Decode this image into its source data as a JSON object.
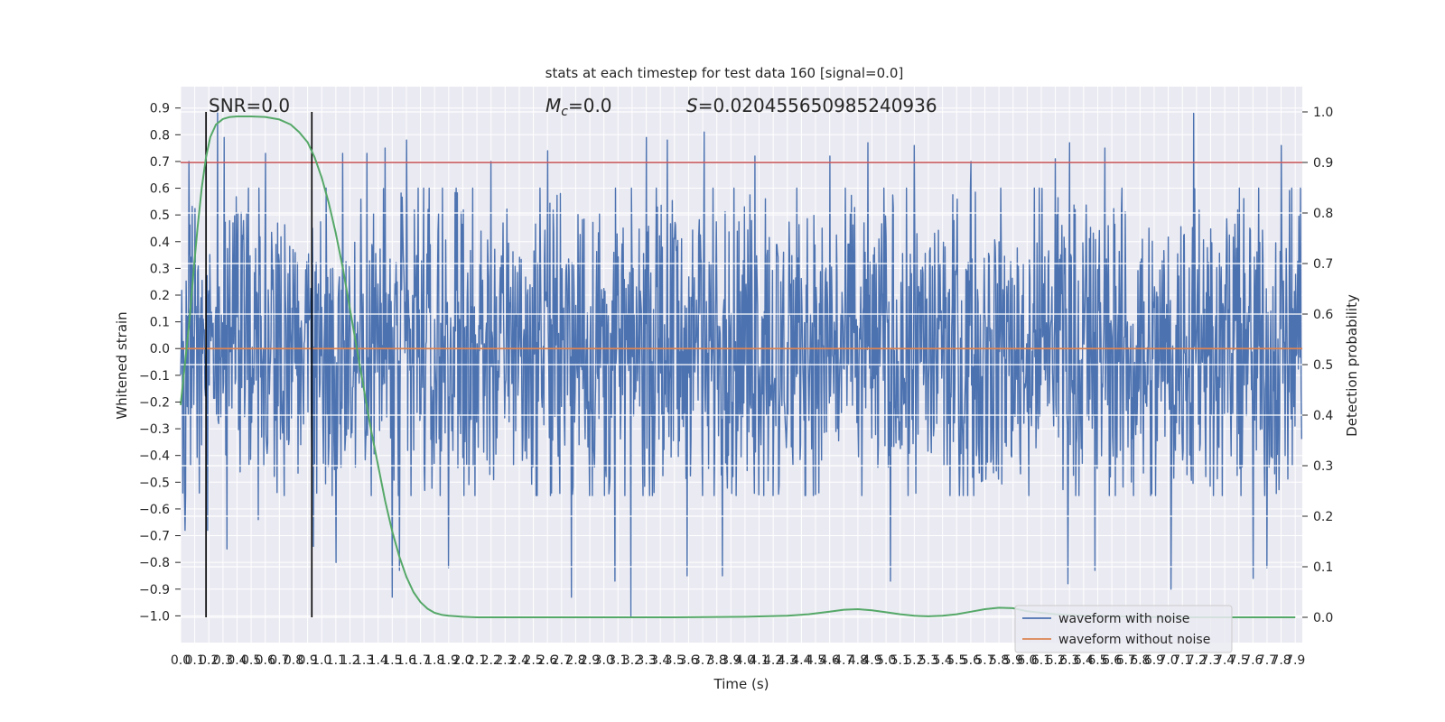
{
  "chart_data": {
    "type": "line",
    "title": "stats at each timestep for test data 160 [signal=0.0]",
    "xlabel": "Time (s)",
    "ylabel": "Whitened strain",
    "y2label": "Detection probability",
    "xlim": [
      0.0,
      7.95
    ],
    "ylim": [
      -1.1,
      0.98
    ],
    "y2lim": [
      -0.05,
      1.05
    ],
    "grid": true,
    "x_ticks": [
      "0.0",
      "0.1",
      "0.2",
      "0.3",
      "0.4",
      "0.5",
      "0.6",
      "0.7",
      "0.8",
      "0.9",
      "1.0",
      "1.1",
      "1.2",
      "1.3",
      "1.4",
      "1.5",
      "1.6",
      "1.7",
      "1.8",
      "1.9",
      "2.0",
      "2.1",
      "2.2",
      "2.3",
      "2.4",
      "2.5",
      "2.6",
      "2.7",
      "2.8",
      "2.9",
      "3.0",
      "3.1",
      "3.2",
      "3.3",
      "3.4",
      "3.5",
      "3.6",
      "3.7",
      "3.8",
      "3.9",
      "4.0",
      "4.1",
      "4.2",
      "4.3",
      "4.4",
      "4.5",
      "4.6",
      "4.7",
      "4.8",
      "4.9",
      "5.0",
      "5.1",
      "5.2",
      "5.3",
      "5.4",
      "5.5",
      "5.6",
      "5.7",
      "5.8",
      "5.9",
      "6.0",
      "6.1",
      "6.2",
      "6.3",
      "6.4",
      "6.5",
      "6.6",
      "6.7",
      "6.8",
      "6.9",
      "7.0",
      "7.1",
      "7.2",
      "7.3",
      "7.4",
      "7.5",
      "7.6",
      "7.7",
      "7.8",
      "7.9"
    ],
    "y_ticks": [
      "0.9",
      "0.8",
      "0.7",
      "0.6",
      "0.5",
      "0.4",
      "0.3",
      "0.2",
      "0.1",
      "0.0",
      "−0.1",
      "−0.2",
      "−0.3",
      "−0.4",
      "−0.5",
      "−0.6",
      "−0.7",
      "−0.8",
      "−0.9",
      "−1.0"
    ],
    "y2_ticks": [
      "1.0",
      "0.9",
      "0.8",
      "0.7",
      "0.6",
      "0.5",
      "0.4",
      "0.3",
      "0.2",
      "0.1",
      "0.0"
    ],
    "annotations": {
      "snr": "SNR=0.0",
      "mc_symbol": "M",
      "mc_sub": "c",
      "mc_value": "=0.0",
      "s_symbol": "S",
      "s_value": "=0.020455650985240936"
    },
    "threshold": {
      "y2": 0.9,
      "color": "#c44e52"
    },
    "vertical_markers": [
      0.18,
      0.93
    ],
    "series": [
      {
        "name": "waveform with noise",
        "color": "#4c72b0",
        "sample_rate": 256,
        "seed": 160,
        "typical_range": [
          -0.45,
          0.5
        ],
        "spikes": [
          {
            "x": 0.26,
            "y": 0.9
          },
          {
            "x": 0.31,
            "y": 0.79
          },
          {
            "x": 0.33,
            "y": -0.75
          },
          {
            "x": 0.06,
            "y": 0.7
          },
          {
            "x": 0.03,
            "y": -0.68
          },
          {
            "x": 0.19,
            "y": -0.68
          },
          {
            "x": 0.6,
            "y": 0.73
          },
          {
            "x": 0.55,
            "y": -0.64
          },
          {
            "x": 0.94,
            "y": -0.74
          },
          {
            "x": 1.1,
            "y": -0.8
          },
          {
            "x": 1.15,
            "y": 0.73
          },
          {
            "x": 1.32,
            "y": 0.73
          },
          {
            "x": 1.45,
            "y": 0.75
          },
          {
            "x": 1.5,
            "y": -0.93
          },
          {
            "x": 1.6,
            "y": 0.78
          },
          {
            "x": 1.55,
            "y": -0.83
          },
          {
            "x": 1.9,
            "y": -0.82
          },
          {
            "x": 2.2,
            "y": 0.7
          },
          {
            "x": 2.6,
            "y": 0.74
          },
          {
            "x": 2.77,
            "y": -0.93
          },
          {
            "x": 3.08,
            "y": -0.87
          },
          {
            "x": 3.19,
            "y": -1.0
          },
          {
            "x": 3.3,
            "y": 0.79
          },
          {
            "x": 3.45,
            "y": 0.78
          },
          {
            "x": 3.71,
            "y": 0.81
          },
          {
            "x": 3.59,
            "y": -0.85
          },
          {
            "x": 3.84,
            "y": -0.85
          },
          {
            "x": 4.07,
            "y": 0.72
          },
          {
            "x": 4.6,
            "y": 0.72
          },
          {
            "x": 4.87,
            "y": 0.77
          },
          {
            "x": 5.03,
            "y": -0.87
          },
          {
            "x": 5.2,
            "y": 0.76
          },
          {
            "x": 5.6,
            "y": 0.7
          },
          {
            "x": 6.2,
            "y": 0.71
          },
          {
            "x": 6.3,
            "y": 0.77
          },
          {
            "x": 6.55,
            "y": 0.75
          },
          {
            "x": 6.29,
            "y": -0.88
          },
          {
            "x": 6.48,
            "y": -0.83
          },
          {
            "x": 7.02,
            "y": -0.9
          },
          {
            "x": 7.18,
            "y": 0.88
          },
          {
            "x": 7.6,
            "y": -0.86
          },
          {
            "x": 7.8,
            "y": 0.76
          },
          {
            "x": 7.7,
            "y": -0.82
          }
        ]
      },
      {
        "name": "waveform without noise",
        "color": "#dd8452",
        "x": [
          0.0,
          7.95
        ],
        "y": [
          0.0,
          0.0
        ]
      },
      {
        "name": "Detection probability",
        "axis": "right",
        "color": "#55a868",
        "x": [
          0.0,
          0.03,
          0.06,
          0.09,
          0.12,
          0.15,
          0.18,
          0.21,
          0.25,
          0.3,
          0.35,
          0.4,
          0.5,
          0.6,
          0.7,
          0.78,
          0.84,
          0.9,
          0.95,
          1.0,
          1.05,
          1.1,
          1.15,
          1.2,
          1.25,
          1.3,
          1.35,
          1.4,
          1.45,
          1.5,
          1.55,
          1.6,
          1.65,
          1.7,
          1.75,
          1.8,
          1.85,
          1.9,
          2.0,
          2.1,
          2.3,
          2.6,
          3.0,
          3.5,
          4.0,
          4.3,
          4.45,
          4.6,
          4.7,
          4.8,
          4.9,
          5.0,
          5.1,
          5.2,
          5.3,
          5.4,
          5.5,
          5.6,
          5.7,
          5.8,
          5.9,
          6.0,
          6.2,
          6.4,
          6.6,
          6.8,
          7.0,
          7.2,
          7.5,
          7.9
        ],
        "y": [
          0.42,
          0.5,
          0.58,
          0.68,
          0.77,
          0.85,
          0.91,
          0.95,
          0.975,
          0.986,
          0.99,
          0.991,
          0.991,
          0.99,
          0.985,
          0.975,
          0.96,
          0.94,
          0.91,
          0.87,
          0.82,
          0.76,
          0.69,
          0.61,
          0.53,
          0.45,
          0.37,
          0.3,
          0.23,
          0.17,
          0.12,
          0.08,
          0.05,
          0.03,
          0.017,
          0.009,
          0.005,
          0.003,
          0.001,
          0.0,
          0.0,
          0.0,
          0.0,
          0.0,
          0.001,
          0.003,
          0.006,
          0.011,
          0.015,
          0.016,
          0.014,
          0.01,
          0.006,
          0.003,
          0.002,
          0.003,
          0.006,
          0.011,
          0.016,
          0.019,
          0.018,
          0.012,
          0.006,
          0.003,
          0.002,
          0.001,
          0.0,
          0.0,
          0.0,
          0.0
        ]
      }
    ],
    "legend": {
      "position": "lower right",
      "entries": [
        "waveform with noise",
        "waveform without noise"
      ]
    }
  }
}
